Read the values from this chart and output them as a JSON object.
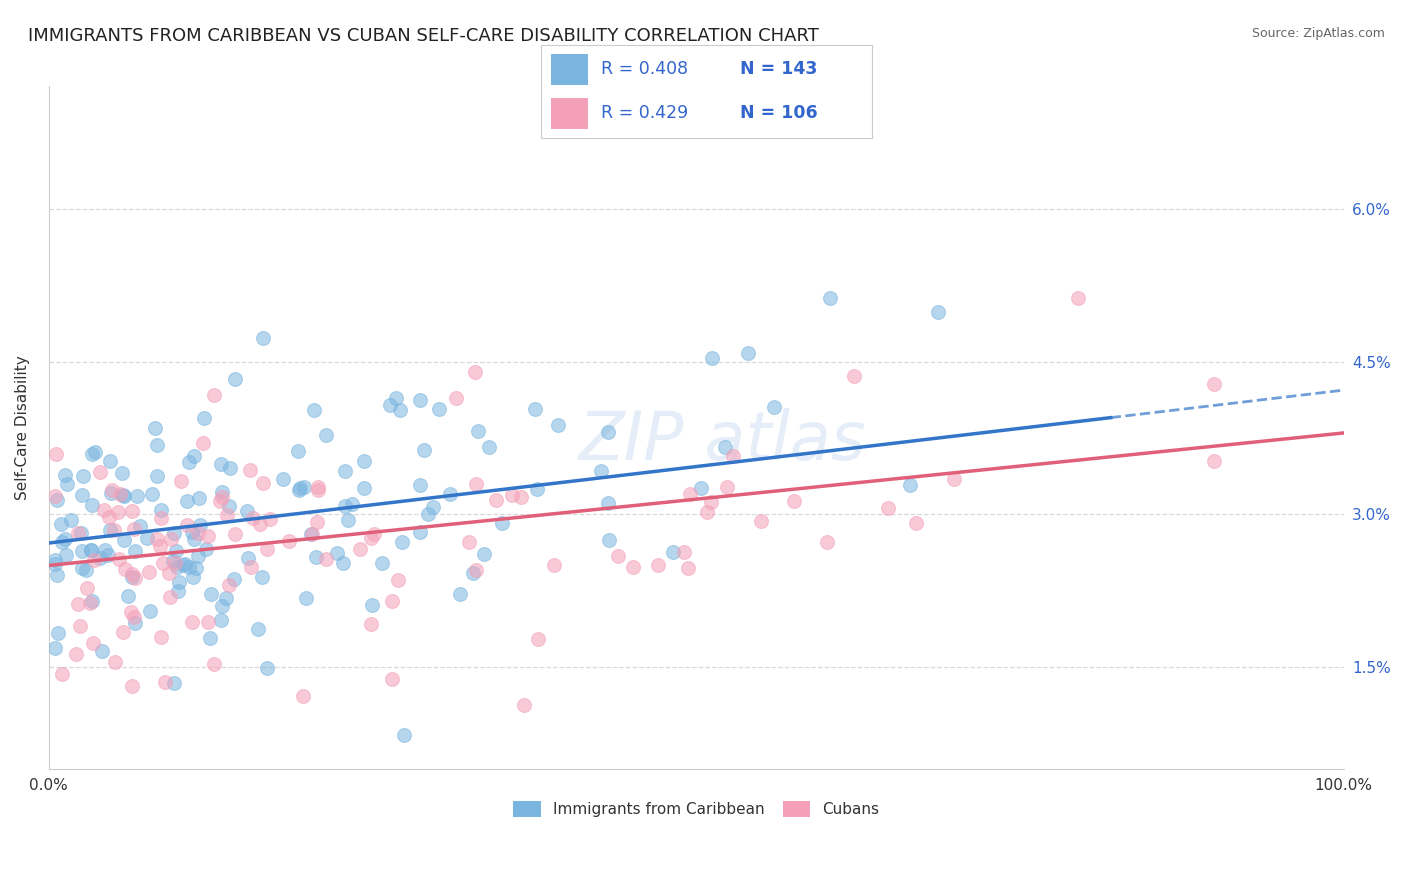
{
  "title": "IMMIGRANTS FROM CARIBBEAN VS CUBAN SELF-CARE DISABILITY CORRELATION CHART",
  "source": "Source: ZipAtlas.com",
  "ylabel": "Self-Care Disability",
  "watermark": "ZIP atlas",
  "series1_name": "Immigrants from Caribbean",
  "series1_color": "#7ab5e0",
  "series1_R": 0.408,
  "series1_N": 143,
  "series2_name": "Cubans",
  "series2_color": "#f4a0b8",
  "series2_R": 0.429,
  "series2_N": 106,
  "xlim": [
    0.0,
    100.0
  ],
  "ylim": [
    0.5,
    7.2
  ],
  "yticks": [
    1.5,
    3.0,
    4.5,
    6.0
  ],
  "ytick_labels": [
    "1.5%",
    "3.0%",
    "4.5%",
    "6.0%"
  ],
  "xticks": [
    0.0,
    100.0
  ],
  "xtick_labels": [
    "0.0%",
    "100.0%"
  ],
  "background_color": "#ffffff",
  "grid_color": "#d0d0d0",
  "title_fontsize": 13,
  "axis_label_fontsize": 11,
  "tick_fontsize": 11,
  "legend_text_color": "#3366cc",
  "series1_line_color": "#3375c8",
  "series2_line_color": "#e0607a",
  "series1_intercept": 2.72,
  "series1_slope": 0.015,
  "series2_intercept": 2.5,
  "series2_slope": 0.013
}
